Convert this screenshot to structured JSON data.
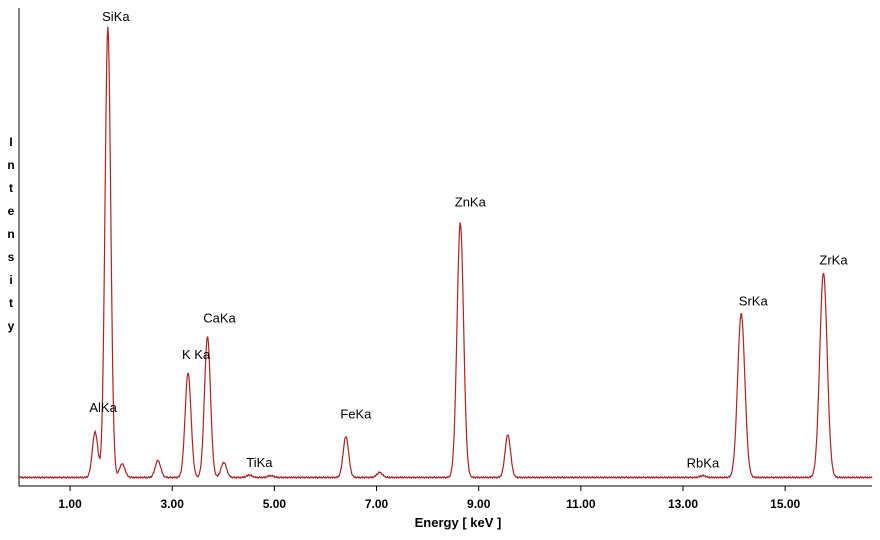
{
  "chart_data": {
    "type": "line",
    "xlabel": "Energy [ keV ]",
    "ylabel": "Intensity",
    "xlim": [
      0,
      16.7
    ],
    "ylim": [
      0,
      100
    ],
    "xticks": [
      1,
      3,
      5,
      7,
      9,
      11,
      13,
      15
    ],
    "xtick_labels": [
      "1.00",
      "3.00",
      "5.00",
      "7.00",
      "9.00",
      "11.00",
      "13.00",
      "15.00"
    ],
    "line_color": "#b22222",
    "baseline": 1.0,
    "peaks": [
      {
        "label": "AlKa",
        "x": 1.49,
        "y": 11
      },
      {
        "label": "SiKa",
        "x": 1.74,
        "y": 100
      },
      {
        "label": "",
        "x": 2.02,
        "y": 4
      },
      {
        "label": "",
        "x": 2.72,
        "y": 4.7
      },
      {
        "label": "K Ka",
        "x": 3.31,
        "y": 24
      },
      {
        "label": "CaKa",
        "x": 3.69,
        "y": 32
      },
      {
        "label": "",
        "x": 4.01,
        "y": 4.3
      },
      {
        "label": "TiKa",
        "x": 4.51,
        "y": 1.5
      },
      {
        "label": "",
        "x": 4.93,
        "y": 1.4
      },
      {
        "label": "FeKa",
        "x": 6.4,
        "y": 10
      },
      {
        "label": "",
        "x": 7.06,
        "y": 2.1
      },
      {
        "label": "ZnKa",
        "x": 8.64,
        "y": 57
      },
      {
        "label": "",
        "x": 9.57,
        "y": 10.4
      },
      {
        "label": "RbKa",
        "x": 13.39,
        "y": 1.4
      },
      {
        "label": "SrKa",
        "x": 14.14,
        "y": 37
      },
      {
        "label": "ZrKa",
        "x": 15.75,
        "y": 46
      }
    ]
  }
}
